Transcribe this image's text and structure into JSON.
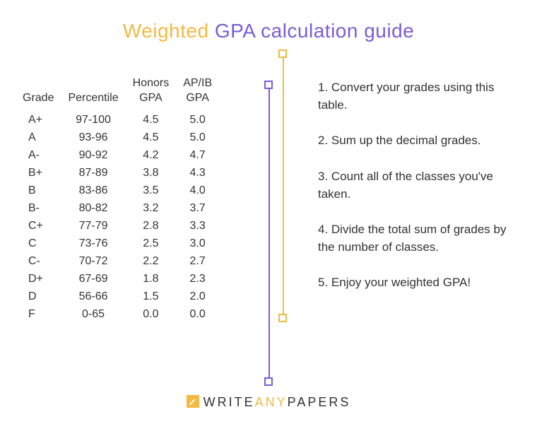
{
  "title": {
    "word1": "Weighted",
    "word2": "GPA",
    "rest": "calculation guide"
  },
  "colors": {
    "yellow": "#f4b942",
    "purple": "#7b5cd6",
    "text": "#333333",
    "background": "#ffffff"
  },
  "table": {
    "columns": [
      "Grade",
      "Percentile",
      "Honors\nGPA",
      "AP/IB\nGPA"
    ],
    "rows": [
      [
        "A+",
        "97-100",
        "4.5",
        "5.0"
      ],
      [
        "A",
        "93-96",
        "4.5",
        "5.0"
      ],
      [
        "A-",
        "90-92",
        "4.2",
        "4.7"
      ],
      [
        "B+",
        "87-89",
        "3.8",
        "4.3"
      ],
      [
        "B",
        "83-86",
        "3.5",
        "4.0"
      ],
      [
        "B-",
        "80-82",
        "3.2",
        "3.7"
      ],
      [
        "C+",
        "77-79",
        "2.8",
        "3.3"
      ],
      [
        "C",
        "73-76",
        "2.5",
        "3.0"
      ],
      [
        "C-",
        "70-72",
        "2.2",
        "2.7"
      ],
      [
        "D+",
        "67-69",
        "1.8",
        "2.3"
      ],
      [
        "D",
        "56-66",
        "1.5",
        "2.0"
      ],
      [
        "F",
        "0-65",
        "0.0",
        "0.0"
      ]
    ]
  },
  "steps": [
    "1. Convert your grades using this table.",
    "2. Sum up the decimal grades.",
    "3. Count all of the classes you've taken.",
    "4. Divide the total sum of grades by the number of classes.",
    "5. Enjoy your weighted GPA!"
  ],
  "footer": {
    "part1": "WRITE",
    "part2": "ANY",
    "part3": "PAPERS"
  }
}
